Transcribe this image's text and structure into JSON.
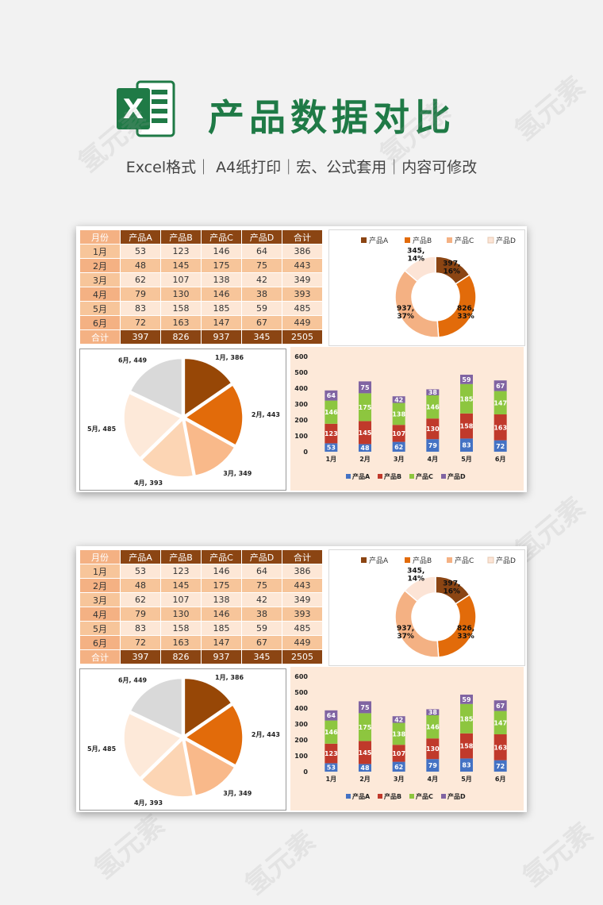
{
  "header": {
    "title": "产品数据对比",
    "subtitle": "Excel格式｜ A4纸打印｜宏、公式套用｜内容可修改",
    "logo_letter": "X",
    "icon": "excel-logo-icon"
  },
  "watermark": "氢元素",
  "colors": {
    "title_green": "#1f7a46",
    "header_brown": "#8b4513",
    "row_light": "#fde7d6",
    "row_dark": "#f7c59a",
    "A": "#4472c4",
    "B": "#c0392b",
    "C": "#8dc63f",
    "D": "#8064a2"
  },
  "table": {
    "headers": [
      "月份",
      "产品A",
      "产品B",
      "产品C",
      "产品D",
      "合计"
    ],
    "rows": [
      [
        "1月",
        "53",
        "123",
        "146",
        "64",
        "386"
      ],
      [
        "2月",
        "48",
        "145",
        "175",
        "75",
        "443"
      ],
      [
        "3月",
        "62",
        "107",
        "138",
        "42",
        "349"
      ],
      [
        "4月",
        "79",
        "130",
        "146",
        "38",
        "393"
      ],
      [
        "5月",
        "83",
        "158",
        "185",
        "59",
        "485"
      ],
      [
        "6月",
        "72",
        "163",
        "147",
        "67",
        "449"
      ]
    ],
    "total": [
      "合计",
      "397",
      "826",
      "937",
      "345",
      "2505"
    ]
  },
  "chart_data": [
    {
      "type": "pie",
      "variant": "donut",
      "legend": [
        "产品A",
        "产品B",
        "产品C",
        "产品D"
      ],
      "legend_position": "top",
      "values": [
        397,
        826,
        937,
        345
      ],
      "labels": [
        "397,\n16%",
        "826,\n33%",
        "937,\n37%",
        "345,\n14%"
      ],
      "colors": [
        "#8b4513",
        "#e26b0a",
        "#f4b183",
        "#fce4d6"
      ]
    },
    {
      "type": "pie",
      "categories": [
        "1月",
        "2月",
        "3月",
        "4月",
        "5月",
        "6月"
      ],
      "values": [
        386,
        443,
        349,
        393,
        485,
        449
      ],
      "labels": [
        "1月, 386",
        "2月, 443",
        "3月, 349",
        "4月, 393",
        "5月, 485",
        "6月, 449"
      ],
      "colors": [
        "#974706",
        "#e26b0a",
        "#f9b98a",
        "#fcd5b4",
        "#fde9d9",
        "#d9d9d9"
      ]
    },
    {
      "type": "bar",
      "stacked": true,
      "categories": [
        "1月",
        "2月",
        "3月",
        "4月",
        "5月",
        "6月"
      ],
      "series": [
        {
          "name": "产品A",
          "values": [
            53,
            48,
            62,
            79,
            83,
            72
          ]
        },
        {
          "name": "产品B",
          "values": [
            123,
            145,
            107,
            130,
            158,
            163
          ]
        },
        {
          "name": "产品C",
          "values": [
            146,
            175,
            138,
            146,
            185,
            147
          ]
        },
        {
          "name": "产品D",
          "values": [
            64,
            75,
            42,
            38,
            59,
            67
          ]
        }
      ],
      "ylim": [
        0,
        600
      ],
      "yticks": [
        0,
        100,
        200,
        300,
        400,
        500,
        600
      ],
      "legend_position": "bottom"
    }
  ]
}
